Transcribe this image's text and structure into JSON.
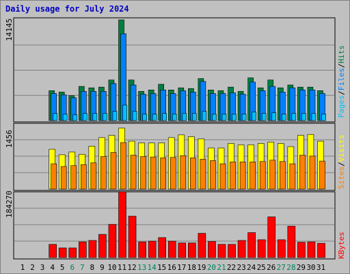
{
  "title": "Daily usage for July 2024",
  "colors": {
    "title": "#0000c0",
    "hits": "#008040",
    "files": "#0080ff",
    "pages": "#00c0ff",
    "visits": "#ffff00",
    "sites": "#ff8000",
    "kbytes": "#ff0000",
    "weekend_label": "#00805c",
    "weekday_label": "#000000",
    "background": "#c0c0c0",
    "gridline": "#808080"
  },
  "chart_data": [
    {
      "type": "bar",
      "title": "Daily usage for July 2024",
      "panel": "hits-files-pages",
      "categories": [
        "1",
        "2",
        "3",
        "4",
        "5",
        "6",
        "7",
        "8",
        "9",
        "10",
        "11",
        "12",
        "13",
        "14",
        "15",
        "16",
        "17",
        "18",
        "19",
        "20",
        "21",
        "22",
        "23",
        "24",
        "25",
        "26",
        "27",
        "28",
        "29",
        "30",
        "31"
      ],
      "weekend_days": [
        "6",
        "7",
        "13",
        "14",
        "20",
        "21",
        "27",
        "28"
      ],
      "y_tick_label": "14145",
      "ylim": [
        0,
        14145
      ],
      "grid": true,
      "series_labels": [
        "Pages",
        "Files",
        "Hits"
      ],
      "series_separator": "/",
      "series": [
        {
          "name": "Hits",
          "values": [
            0,
            0,
            0,
            4200,
            4000,
            3500,
            4800,
            4600,
            4700,
            5700,
            14145,
            5700,
            4100,
            4300,
            5100,
            4300,
            4600,
            4500,
            5900,
            4300,
            4200,
            4700,
            4100,
            6000,
            4600,
            5700,
            4600,
            5000,
            4700,
            4700,
            4200
          ]
        },
        {
          "name": "Files",
          "values": [
            0,
            0,
            0,
            3800,
            3600,
            3200,
            4100,
            4100,
            4100,
            5200,
            12200,
            5000,
            3700,
            3800,
            4300,
            3800,
            4200,
            4000,
            5500,
            3800,
            3800,
            3900,
            3700,
            5400,
            4200,
            4800,
            4000,
            4600,
            4300,
            4300,
            3800
          ]
        },
        {
          "name": "Pages",
          "values": [
            0,
            0,
            0,
            1000,
            900,
            800,
            1000,
            1000,
            1000,
            1300,
            2200,
            1300,
            900,
            900,
            1000,
            900,
            1000,
            1000,
            1300,
            900,
            900,
            900,
            900,
            1200,
            1000,
            1100,
            900,
            1000,
            1000,
            1000,
            900
          ]
        }
      ]
    },
    {
      "type": "bar",
      "panel": "visits-sites",
      "categories": [
        "1",
        "2",
        "3",
        "4",
        "5",
        "6",
        "7",
        "8",
        "9",
        "10",
        "11",
        "12",
        "13",
        "14",
        "15",
        "16",
        "17",
        "18",
        "19",
        "20",
        "21",
        "22",
        "23",
        "24",
        "25",
        "26",
        "27",
        "28",
        "29",
        "30",
        "31"
      ],
      "y_tick_label": "1456",
      "ylim": [
        0,
        1456
      ],
      "grid": true,
      "series_labels": [
        "Sites",
        "Visits"
      ],
      "series_separator": "/",
      "series": [
        {
          "name": "Visits",
          "values": [
            0,
            0,
            0,
            880,
            760,
            820,
            770,
            950,
            1140,
            1190,
            1350,
            1060,
            1020,
            1020,
            1020,
            1140,
            1200,
            1160,
            1110,
            910,
            910,
            1010,
            980,
            980,
            1010,
            1040,
            1010,
            940,
            1190,
            1210,
            1060
          ]
        },
        {
          "name": "Sites",
          "values": [
            0,
            0,
            0,
            560,
            500,
            520,
            540,
            580,
            720,
            810,
            1030,
            750,
            720,
            710,
            690,
            700,
            740,
            690,
            660,
            630,
            560,
            600,
            600,
            600,
            610,
            640,
            610,
            560,
            750,
            730,
            620
          ]
        }
      ]
    },
    {
      "type": "bar",
      "panel": "kbytes",
      "categories": [
        "1",
        "2",
        "3",
        "4",
        "5",
        "6",
        "7",
        "8",
        "9",
        "10",
        "11",
        "12",
        "13",
        "14",
        "15",
        "16",
        "17",
        "18",
        "19",
        "20",
        "21",
        "22",
        "23",
        "24",
        "25",
        "26",
        "27",
        "28",
        "29",
        "30",
        "31"
      ],
      "y_tick_label": "184270",
      "ylim": [
        0,
        184270
      ],
      "grid": true,
      "series_labels": [
        "KBytes"
      ],
      "series": [
        {
          "name": "KBytes",
          "values": [
            0,
            0,
            0,
            37000,
            27000,
            27000,
            44000,
            48000,
            65000,
            93000,
            184270,
            116000,
            44000,
            46000,
            56000,
            46000,
            41000,
            41000,
            68000,
            45000,
            37000,
            37000,
            48000,
            70000,
            50000,
            114000,
            50000,
            88000,
            43000,
            44000,
            40000
          ]
        }
      ]
    }
  ]
}
